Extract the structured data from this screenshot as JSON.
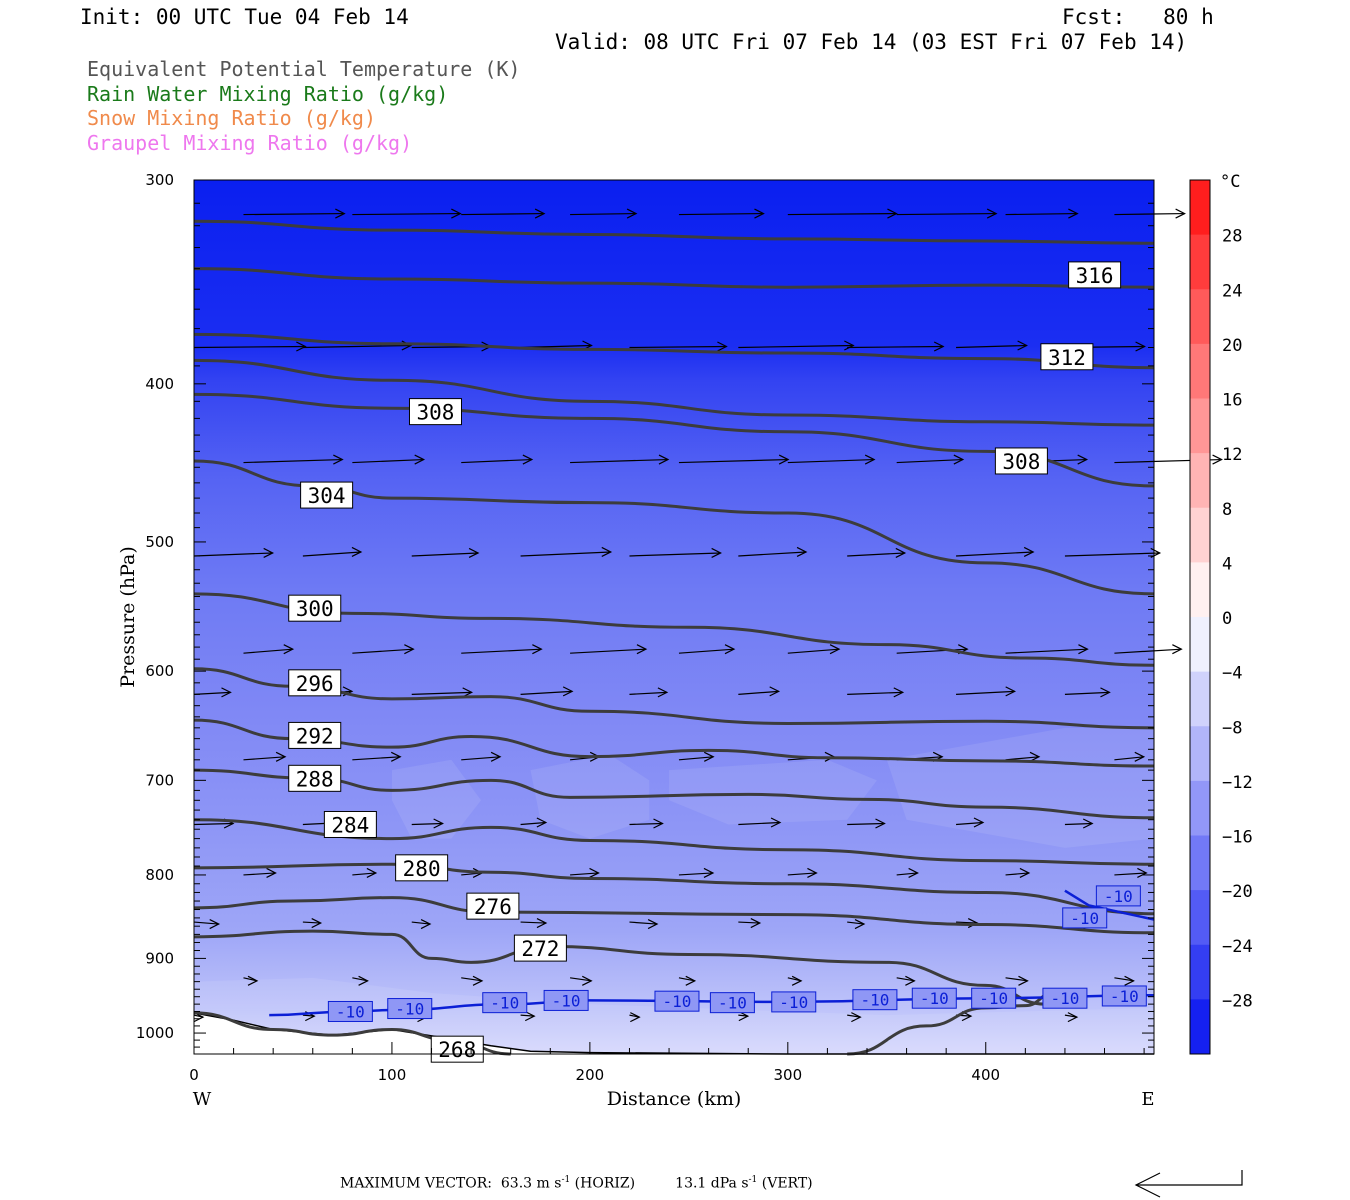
{
  "header": {
    "init": "Init: 00 UTC Tue 04 Feb 14",
    "fcst": "Fcst:   80 h",
    "valid": "Valid: 08 UTC Fri 07 Feb 14 (03 EST Fri 07 Feb 14)"
  },
  "fields": [
    {
      "label": "Equivalent Potential Temperature (K)",
      "color": "#555555"
    },
    {
      "label": "Rain Water Mixing Ratio (g/kg)",
      "color": "#1a7a1a"
    },
    {
      "label": "Snow Mixing Ratio (g/kg)",
      "color": "#f08a4b"
    },
    {
      "label": "Graupel Mixing Ratio (g/kg)",
      "color": "#ee77ee"
    }
  ],
  "footer": {
    "label": "MAXIMUM VECTOR:",
    "horiz_value": "63.3",
    "horiz_unit": "m s",
    "horiz_tag": "(HORIZ)",
    "vert_value": "13.1",
    "vert_unit": "dPa s",
    "vert_tag": "(VERT)",
    "exponent": "-1"
  },
  "chart_data": {
    "type": "contour",
    "xlabel": "Distance (km)",
    "ylabel": "Pressure (hPa)",
    "xlim": [
      0,
      485
    ],
    "ylim": [
      300,
      1030
    ],
    "y_scale": "log-pressure (inverted)",
    "x_ticks": [
      0,
      100,
      200,
      300,
      400
    ],
    "y_ticks": [
      300,
      400,
      500,
      600,
      700,
      800,
      900,
      1000
    ],
    "x_end_labels": {
      "left": "W",
      "right": "E"
    },
    "colorbar": {
      "unit": "°C",
      "labels": [
        28,
        24,
        20,
        16,
        12,
        8,
        4,
        0,
        -4,
        -8,
        -12,
        -16,
        -20,
        -24,
        -28
      ],
      "range": [
        -32,
        32
      ],
      "step": 4
    },
    "theta_e_contours": [
      {
        "value": 316,
        "label_at": [
          455,
          343
        ],
        "points": [
          [
            0,
            318
          ],
          [
            100,
            322
          ],
          [
            200,
            324
          ],
          [
            300,
            326
          ],
          [
            400,
            327
          ],
          [
            485,
            328
          ]
        ]
      },
      {
        "value": 316,
        "label_at": null,
        "points": [
          [
            0,
            340
          ],
          [
            100,
            345
          ],
          [
            200,
            347
          ],
          [
            300,
            349
          ],
          [
            400,
            348
          ],
          [
            485,
            349
          ]
        ]
      },
      {
        "value": 312,
        "label_at": [
          441,
          385
        ],
        "points": [
          [
            0,
            373
          ],
          [
            100,
            378
          ],
          [
            200,
            381
          ],
          [
            300,
            383
          ],
          [
            400,
            386
          ],
          [
            485,
            391
          ]
        ]
      },
      {
        "value": 308,
        "label_at": [
          122,
          416
        ],
        "points": [
          [
            0,
            387
          ],
          [
            100,
            398
          ],
          [
            200,
            410
          ],
          [
            300,
            418
          ],
          [
            400,
            422
          ],
          [
            485,
            424
          ]
        ]
      },
      {
        "value": 308,
        "label_at": [
          418,
          446
        ],
        "points": [
          [
            0,
            406
          ],
          [
            100,
            414
          ],
          [
            200,
            420
          ],
          [
            300,
            428
          ],
          [
            400,
            440
          ],
          [
            485,
            462
          ]
        ]
      },
      {
        "value": 304,
        "label_at": [
          67,
          468
        ],
        "points": [
          [
            0,
            446
          ],
          [
            60,
            462
          ],
          [
            100,
            470
          ],
          [
            200,
            473
          ],
          [
            300,
            480
          ],
          [
            400,
            515
          ],
          [
            485,
            538
          ]
        ]
      },
      {
        "value": 300,
        "label_at": [
          61,
          549
        ],
        "points": [
          [
            0,
            538
          ],
          [
            80,
            553
          ],
          [
            150,
            557
          ],
          [
            250,
            564
          ],
          [
            350,
            578
          ],
          [
            420,
            589
          ],
          [
            485,
            595
          ]
        ]
      },
      {
        "value": 296,
        "label_at": [
          61,
          610
        ],
        "points": [
          [
            0,
            598
          ],
          [
            50,
            613
          ],
          [
            100,
            624
          ],
          [
            150,
            622
          ],
          [
            200,
            635
          ],
          [
            300,
            646
          ],
          [
            400,
            644
          ],
          [
            485,
            650
          ]
        ]
      },
      {
        "value": 292,
        "label_at": [
          61,
          657
        ],
        "points": [
          [
            0,
            643
          ],
          [
            50,
            660
          ],
          [
            100,
            668
          ],
          [
            140,
            658
          ],
          [
            200,
            677
          ],
          [
            260,
            671
          ],
          [
            320,
            678
          ],
          [
            400,
            681
          ],
          [
            485,
            686
          ]
        ]
      },
      {
        "value": 288,
        "label_at": [
          61,
          698
        ],
        "points": [
          [
            0,
            690
          ],
          [
            60,
            698
          ],
          [
            100,
            710
          ],
          [
            150,
            700
          ],
          [
            190,
            717
          ],
          [
            280,
            714
          ],
          [
            340,
            719
          ],
          [
            400,
            727
          ],
          [
            485,
            738
          ]
        ]
      },
      {
        "value": 284,
        "label_at": [
          79,
          745
        ],
        "points": [
          [
            0,
            740
          ],
          [
            100,
            760
          ],
          [
            150,
            748
          ],
          [
            200,
            762
          ],
          [
            300,
            772
          ],
          [
            400,
            784
          ],
          [
            485,
            788
          ]
        ]
      },
      {
        "value": 280,
        "label_at": [
          115,
          792
        ],
        "points": [
          [
            0,
            792
          ],
          [
            100,
            788
          ],
          [
            150,
            797
          ],
          [
            200,
            804
          ],
          [
            300,
            810
          ],
          [
            400,
            820
          ],
          [
            485,
            845
          ]
        ]
      },
      {
        "value": 276,
        "label_at": [
          151,
          836
        ],
        "points": [
          [
            0,
            838
          ],
          [
            50,
            830
          ],
          [
            100,
            826
          ],
          [
            150,
            843
          ],
          [
            300,
            846
          ],
          [
            400,
            858
          ],
          [
            485,
            868
          ]
        ]
      },
      {
        "value": 272,
        "label_at": [
          175,
          887
        ],
        "points": [
          [
            0,
            873
          ],
          [
            60,
            866
          ],
          [
            100,
            870
          ],
          [
            120,
            900
          ],
          [
            140,
            905
          ],
          [
            180,
            885
          ],
          [
            250,
            895
          ],
          [
            350,
            905
          ],
          [
            400,
            935
          ],
          [
            430,
            960
          ],
          [
            450,
            944
          ]
        ]
      },
      {
        "value": 268,
        "label_at": [
          133,
          1023
        ],
        "points": [
          [
            0,
            972
          ],
          [
            40,
            995
          ],
          [
            70,
            1003
          ],
          [
            100,
            995
          ],
          [
            130,
            1010
          ],
          [
            160,
            1030
          ]
        ]
      },
      {
        "value": 268,
        "label_at": null,
        "points": [
          [
            330,
            1030
          ],
          [
            370,
            990
          ],
          [
            400,
            965
          ],
          [
            420,
            962
          ],
          [
            435,
            944
          ]
        ]
      }
    ],
    "temperature_isotherm": {
      "value": -10,
      "points": [
        [
          38,
          975
        ],
        [
          80,
          970
        ],
        [
          100,
          968
        ],
        [
          160,
          960
        ],
        [
          200,
          955
        ],
        [
          300,
          957
        ],
        [
          400,
          952
        ],
        [
          485,
          948
        ]
      ],
      "labels_at": [
        [
          79,
          970
        ],
        [
          109,
          966
        ],
        [
          157,
          958
        ],
        [
          188,
          955
        ],
        [
          244,
          956
        ],
        [
          272,
          958
        ],
        [
          303,
          957
        ],
        [
          344,
          954
        ],
        [
          374,
          952
        ],
        [
          404,
          952
        ],
        [
          440,
          952
        ],
        [
          470,
          949
        ],
        [
          467,
          824
        ],
        [
          450,
          850
        ]
      ]
    }
  }
}
